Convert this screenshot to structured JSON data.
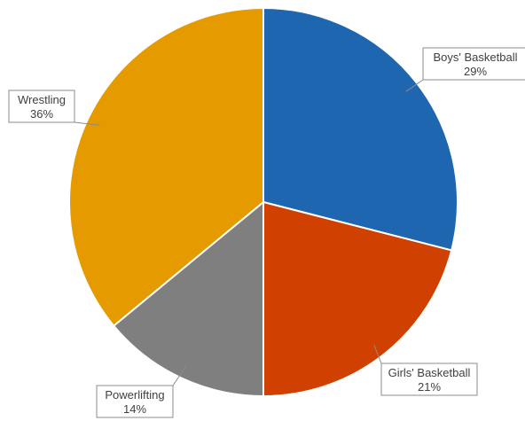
{
  "chart_data": {
    "type": "pie",
    "title": "",
    "slices": [
      {
        "label": "Boys' Basketball",
        "value": 29,
        "value_label": "29%",
        "color": "#1f66b0"
      },
      {
        "label": "Girls' Basketball",
        "value": 21,
        "value_label": "21%",
        "color": "#d04000"
      },
      {
        "label": "Powerlifting",
        "value": 14,
        "value_label": "14%",
        "color": "#7f7f7f"
      },
      {
        "label": "Wrestling",
        "value": 36,
        "value_label": "36%",
        "color": "#e59a00"
      }
    ],
    "start_angle": "12 o'clock",
    "direction": "clockwise",
    "legend": "none",
    "data_labels": "callouts"
  }
}
